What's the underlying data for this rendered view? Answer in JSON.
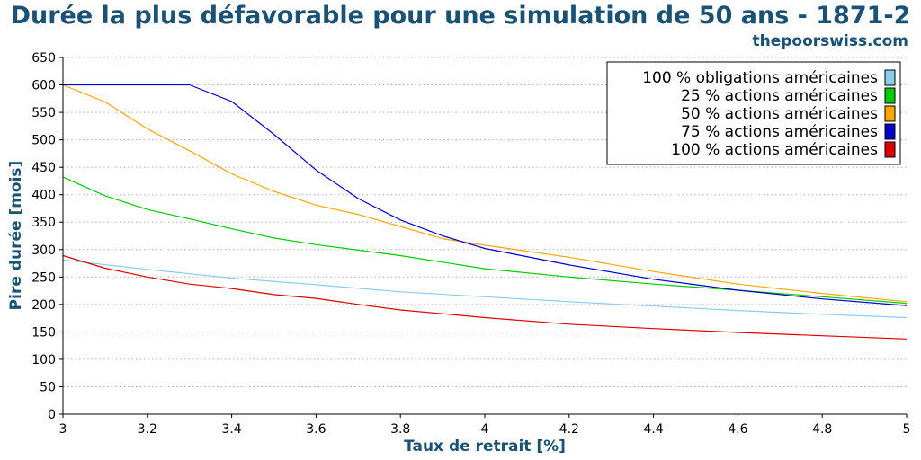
{
  "chart_data": {
    "type": "line",
    "title": "Durée la plus défavorable pour une simulation de 50 ans - 1871-2",
    "source": "thepoorswiss.com",
    "xlabel": "Taux de retrait [%]",
    "ylabel": "Pire durée [mois]",
    "xlim": [
      3,
      5
    ],
    "ylim": [
      0,
      650
    ],
    "xticks": [
      "3",
      "3.2",
      "3.4",
      "3.6",
      "3.8",
      "4",
      "4.2",
      "4.4",
      "4.6",
      "4.8",
      "5"
    ],
    "yticks": [
      "0",
      "50",
      "100",
      "150",
      "200",
      "250",
      "300",
      "350",
      "400",
      "450",
      "500",
      "550",
      "600",
      "650"
    ],
    "grid": "horizontal dotted",
    "legend_position": "top-right",
    "series": [
      {
        "name": "100 % obligations américaines",
        "color": "#87ceeb",
        "x": [
          3,
          3.2,
          3.4,
          3.6,
          3.8,
          4,
          4.2,
          4.4,
          4.6,
          4.8,
          5
        ],
        "values": [
          281,
          264,
          248,
          236,
          223,
          214,
          205,
          197,
          189,
          182,
          176
        ]
      },
      {
        "name": "25 % actions américaines",
        "color": "#00cc00",
        "x": [
          3,
          3.1,
          3.2,
          3.3,
          3.4,
          3.5,
          3.6,
          3.7,
          3.8,
          3.9,
          4,
          4.2,
          4.4,
          4.6,
          4.8,
          5
        ],
        "values": [
          432,
          398,
          373,
          356,
          338,
          321,
          309,
          299,
          289,
          277,
          265,
          250,
          237,
          226,
          214,
          202
        ]
      },
      {
        "name": "50 % actions américaines",
        "color": "#ffa500",
        "x": [
          3,
          3.1,
          3.2,
          3.3,
          3.4,
          3.5,
          3.6,
          3.7,
          3.8,
          3.9,
          4,
          4.2,
          4.4,
          4.6,
          4.8,
          5
        ],
        "values": [
          600,
          569,
          520,
          480,
          438,
          406,
          381,
          364,
          342,
          320,
          308,
          286,
          260,
          237,
          220,
          205
        ]
      },
      {
        "name": "75 % actions américaines",
        "color": "#0000cc",
        "x": [
          3,
          3.1,
          3.2,
          3.3,
          3.4,
          3.5,
          3.6,
          3.7,
          3.8,
          3.9,
          4,
          4.2,
          4.4,
          4.6,
          4.8,
          5
        ],
        "values": [
          600,
          600,
          600,
          600,
          570,
          510,
          445,
          393,
          354,
          325,
          302,
          272,
          246,
          226,
          210,
          198
        ]
      },
      {
        "name": "100 % actions américaines",
        "color": "#dd0000",
        "x": [
          3,
          3.1,
          3.2,
          3.3,
          3.4,
          3.5,
          3.6,
          3.7,
          3.8,
          3.9,
          4,
          4.2,
          4.4,
          4.6,
          4.8,
          5
        ],
        "values": [
          289,
          266,
          250,
          237,
          229,
          218,
          211,
          200,
          190,
          183,
          176,
          164,
          156,
          149,
          143,
          137
        ]
      }
    ]
  }
}
